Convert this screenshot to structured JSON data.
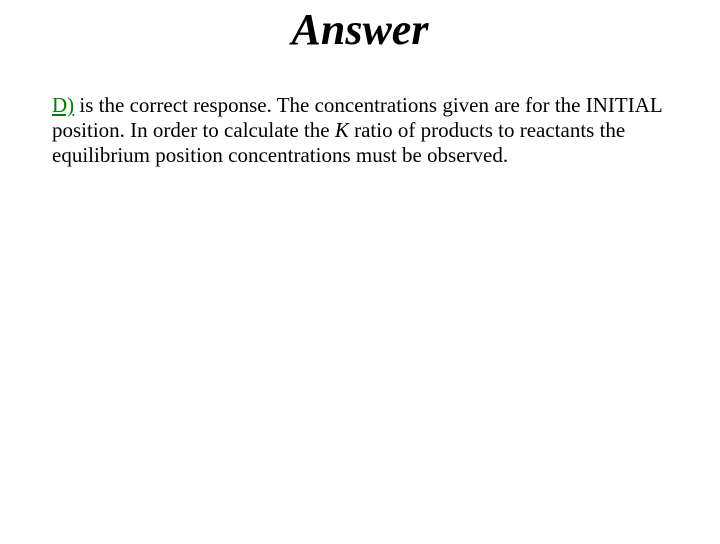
{
  "title": "Answer",
  "answer_letter": "D)",
  "body_part1": " is the correct response.  The concentrations given are for the INITIAL position.  In order to calculate the ",
  "k_symbol": "K",
  "body_part2": " ratio of products to reactants the equilibrium position concentrations must be observed.",
  "colors": {
    "answer_letter": "#008000",
    "text": "#000000",
    "background": "#ffffff"
  },
  "fonts": {
    "title_size": 44,
    "body_size": 21,
    "family": "Times New Roman"
  }
}
